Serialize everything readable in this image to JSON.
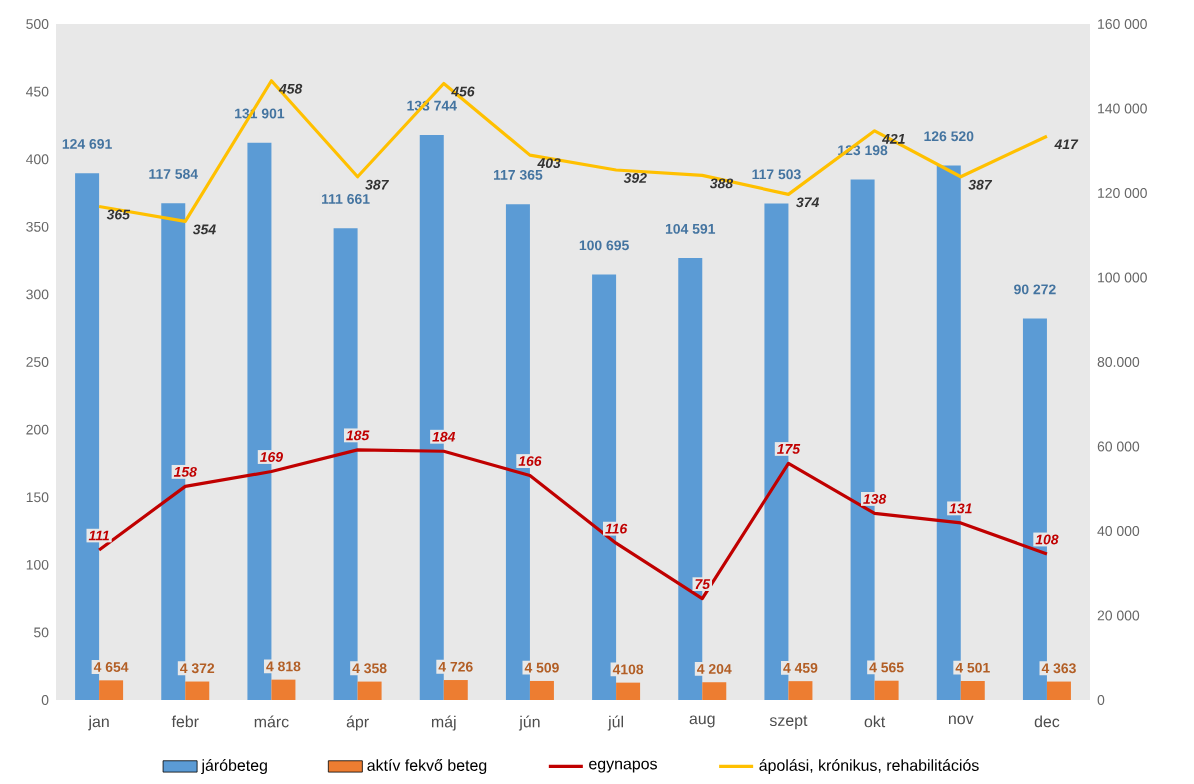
{
  "chart_data": {
    "type": "bar",
    "categories": [
      "jan",
      "febr",
      "márc",
      "ápr",
      "máj",
      "jún",
      "júl",
      "aug",
      "szept",
      "okt",
      "nov",
      "dec"
    ],
    "ylim": [
      0,
      500
    ],
    "yticks": [
      0,
      50,
      100,
      150,
      200,
      250,
      300,
      350,
      400,
      450,
      500
    ],
    "y2lim": [
      0,
      160000
    ],
    "y2ticks": [
      {
        "value": 0,
        "label": "0"
      },
      {
        "value": 20000,
        "label": "20 000"
      },
      {
        "value": 40000,
        "label": "40 000"
      },
      {
        "value": 60000,
        "label": "60 000"
      },
      {
        "value": 80000,
        "label": "80.000"
      },
      {
        "value": 100000,
        "label": "100 000"
      },
      {
        "value": 120000,
        "label": "120 000"
      },
      {
        "value": 140000,
        "label": "140 000"
      },
      {
        "value": 160000,
        "label": "160 000"
      }
    ],
    "legend": "bottom",
    "series": [
      {
        "name": "járóbeteg",
        "color": "#5b9bd5",
        "axis": "y2",
        "values": [
          124691,
          117584,
          131901,
          111661,
          133744,
          117365,
          100695,
          104591,
          117503,
          123198,
          126520,
          90272
        ],
        "value_labels": [
          "124 691",
          "117 584",
          "131 901",
          "111 661",
          "133 744",
          "117 365",
          "100 695",
          "104 591",
          "117 503",
          "123 198",
          "126 520",
          "90 272"
        ]
      },
      {
        "name": "aktív fekvő beteg",
        "color": "#ed7d31",
        "axis": "y2",
        "values": [
          4654,
          4372,
          4818,
          4358,
          4726,
          4509,
          4108,
          4204,
          4459,
          4565,
          4501,
          4363
        ],
        "value_labels": [
          "4 654",
          "4 372",
          "4 818",
          "4 358",
          "4 726",
          "4 509",
          "4108",
          "4 204",
          "4 459",
          "4 565",
          "4 501",
          "4 363"
        ]
      },
      {
        "name": "egynapos",
        "type": "line",
        "color": "#c00000",
        "values": [
          111,
          158,
          169,
          185,
          184,
          166,
          116,
          75,
          175,
          138,
          131,
          108
        ],
        "value_labels": [
          "111",
          "158",
          "169",
          "185",
          "184",
          "166",
          "116",
          "75",
          "175",
          "138",
          "131",
          "108"
        ]
      },
      {
        "name": "ápolási, krónikus, rehabilitációs",
        "type": "line",
        "color": "#ffc000",
        "values": [
          365,
          354,
          458,
          387,
          456,
          403,
          392,
          388,
          374,
          421,
          387,
          417
        ],
        "value_labels": [
          "365",
          "354",
          "458",
          "387",
          "456",
          "403",
          "392",
          "388",
          "374",
          "421",
          "387",
          "417"
        ]
      }
    ]
  }
}
